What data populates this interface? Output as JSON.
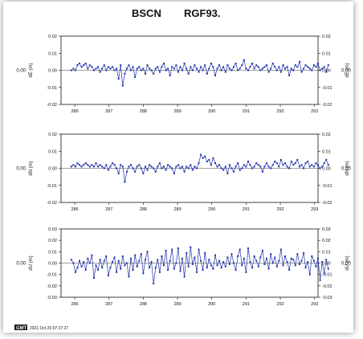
{
  "title": {
    "station": "BSCN",
    "frame": "RGF93."
  },
  "footer": {
    "logo": "GMT",
    "timestamp": "2021 Oct 20 07:27:27"
  },
  "colors": {
    "series": "#2233aa",
    "axis": "#111111",
    "bg": "#ffffff"
  },
  "chart_data": [
    {
      "type": "line",
      "ylabel": "dE (m)",
      "ylim": [
        -0.02,
        0.02
      ],
      "yticks": [
        "0.02",
        "0.01",
        "0.00",
        "-0.01",
        "-0.02"
      ],
      "xlim": [
        285.6,
        293.1
      ],
      "xticks": [
        "286",
        "287",
        "288",
        "289",
        "290",
        "291",
        "292",
        "293"
      ],
      "side_label": "0.00",
      "x_start": 285.9,
      "x_step": 0.06,
      "values": [
        0.0,
        0.001,
        0.0,
        0.003,
        0.004,
        0.002,
        0.003,
        0.004,
        0.001,
        0.003,
        0.002,
        0.0,
        0.001,
        0.002,
        -0.001,
        0.001,
        0.003,
        0.0,
        0.002,
        0.001,
        0.002,
        0.0,
        0.001,
        -0.005,
        0.003,
        -0.009,
        -0.002,
        0.001,
        0.003,
        0.0,
        0.002,
        -0.004,
        0.001,
        0.002,
        0.0,
        0.001,
        -0.002,
        0.003,
        0.001,
        0.0,
        -0.002,
        0.001,
        0.002,
        -0.001,
        0.002,
        0.004,
        0.0,
        0.001,
        -0.003,
        0.002,
        0.001,
        0.003,
        -0.001,
        0.002,
        0.0,
        0.004,
        0.001,
        -0.002,
        0.002,
        0.0,
        0.003,
        0.001,
        -0.001,
        0.002,
        0.0,
        0.003,
        -0.002,
        0.001,
        0.004,
        0.002,
        -0.003,
        0.001,
        0.003,
        0.0,
        0.002,
        -0.001,
        0.003,
        0.001,
        0.0,
        0.002,
        0.004,
        0.0,
        0.001,
        0.003,
        0.006,
        0.001,
        0.0,
        0.002,
        0.004,
        0.001,
        0.003,
        0.002,
        0.0,
        0.001,
        0.002,
        0.003,
        -0.001,
        0.001,
        0.004,
        0.002,
        0.0,
        0.002,
        -0.001,
        0.003,
        0.001,
        0.002,
        -0.003,
        0.001,
        0.0,
        0.003,
        0.002,
        0.005,
        -0.001,
        0.001,
        0.003,
        0.002,
        0.001,
        0.0,
        0.003,
        0.002,
        0.004,
        0.0,
        0.001,
        0.002,
        -0.001,
        0.003
      ]
    },
    {
      "type": "line",
      "ylabel": "dN (m)",
      "ylim": [
        -0.02,
        0.02
      ],
      "yticks": [
        "0.02",
        "0.01",
        "0.00",
        "-0.01",
        "-0.02"
      ],
      "xlim": [
        285.6,
        293.1
      ],
      "xticks": [
        "286",
        "287",
        "288",
        "289",
        "290",
        "291",
        "292",
        "293"
      ],
      "side_label": "0.00",
      "x_start": 285.9,
      "x_step": 0.06,
      "values": [
        0.001,
        0.002,
        0.001,
        0.003,
        0.002,
        0.001,
        0.002,
        0.003,
        0.002,
        0.001,
        0.002,
        0.001,
        0.003,
        0.001,
        0.002,
        0.001,
        0.0,
        0.002,
        -0.001,
        0.001,
        0.003,
        0.002,
        0.0,
        -0.003,
        0.002,
        0.001,
        -0.008,
        -0.002,
        0.001,
        0.002,
        0.0,
        -0.002,
        0.001,
        0.002,
        0.0,
        -0.003,
        0.001,
        -0.001,
        0.002,
        0.001,
        0.0,
        -0.002,
        0.001,
        0.003,
        0.0,
        0.001,
        -0.001,
        0.002,
        0.001,
        0.0,
        -0.003,
        0.001,
        0.002,
        0.0,
        0.001,
        -0.002,
        0.001,
        0.0,
        0.002,
        -0.001,
        0.001,
        0.0,
        0.003,
        0.008,
        0.006,
        0.007,
        0.004,
        0.005,
        0.002,
        0.006,
        0.003,
        0.001,
        0.002,
        0.0,
        -0.001,
        0.001,
        -0.003,
        0.002,
        0.0,
        -0.002,
        0.001,
        0.003,
        -0.001,
        0.0,
        0.002,
        0.001,
        0.004,
        0.002,
        0.0,
        0.001,
        0.003,
        0.002,
        0.001,
        -0.002,
        0.001,
        0.003,
        0.001,
        0.0,
        0.002,
        0.004,
        0.003,
        0.001,
        0.005,
        0.002,
        0.003,
        0.001,
        0.0,
        0.004,
        0.002,
        0.003,
        0.005,
        0.001,
        0.002,
        0.0,
        0.003,
        0.004,
        0.001,
        0.002,
        0.001,
        0.003,
        0.002,
        0.0,
        0.001,
        0.003,
        0.005,
        0.002
      ]
    },
    {
      "type": "line",
      "ylabel": "dU (m)",
      "ylim": [
        -0.03,
        0.03
      ],
      "yticks": [
        "0.03",
        "0.02",
        "0.01",
        "0.00",
        "-0.01",
        "-0.02",
        "-0.03"
      ],
      "xlim": [
        285.6,
        293.1
      ],
      "xticks": [
        "286",
        "287",
        "288",
        "289",
        "290",
        "291",
        "292",
        "293"
      ],
      "side_label": "0.00",
      "x_start": 285.9,
      "x_step": 0.06,
      "values": [
        0.003,
        0.0,
        -0.008,
        -0.004,
        0.002,
        -0.003,
        0.001,
        -0.006,
        0.004,
        0.0,
        0.007,
        -0.013,
        -0.002,
        -0.006,
        0.003,
        -0.004,
        0.002,
        0.006,
        -0.011,
        -0.004,
        0.001,
        0.005,
        -0.008,
        0.002,
        -0.005,
        0.006,
        -0.002,
        0.0,
        -0.012,
        0.004,
        -0.006,
        0.007,
        -0.003,
        0.002,
        0.008,
        -0.009,
        0.003,
        0.01,
        -0.004,
        0.001,
        -0.018,
        -0.004,
        0.003,
        -0.008,
        0.006,
        -0.002,
        0.011,
        -0.006,
        0.002,
        0.012,
        -0.005,
        0.0,
        0.013,
        -0.007,
        0.004,
        -0.012,
        0.009,
        -0.003,
        0.014,
        -0.001,
        0.005,
        -0.008,
        0.012,
        0.002,
        -0.006,
        0.009,
        -0.004,
        0.003,
        -0.002,
        -0.005,
        0.007,
        -0.002,
        0.002,
        -0.004,
        0.001,
        -0.003,
        0.005,
        -0.001,
        0.008,
        0.0,
        -0.006,
        0.006,
        0.012,
        -0.002,
        0.004,
        -0.008,
        0.013,
        0.001,
        -0.004,
        0.006,
        0.002,
        -0.003,
        0.005,
        0.011,
        -0.001,
        0.004,
        -0.005,
        0.008,
        0.0,
        0.005,
        -0.003,
        0.002,
        0.012,
        -0.002,
        0.006,
        0.001,
        -0.006,
        0.004,
        0.003,
        -0.002,
        0.008,
        -0.001,
        0.002,
        0.009,
        -0.004,
        0.001,
        -0.01,
        0.006,
        0.002,
        -0.003,
        0.004,
        -0.015,
        0.001,
        -0.009,
        0.003,
        -0.005
      ]
    }
  ]
}
